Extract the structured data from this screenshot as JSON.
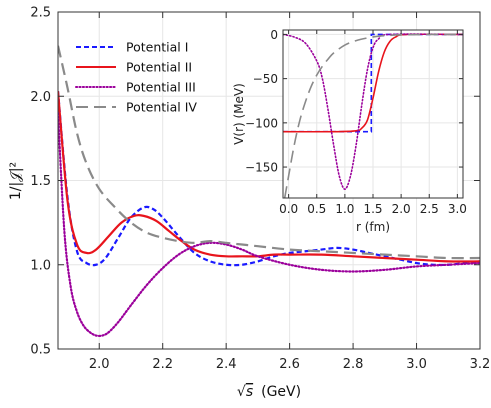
{
  "chart_data": [
    {
      "type": "line",
      "xlabel_radical": "√",
      "xlabel_var": "s",
      "xlabel_unit": "(GeV)",
      "ylabel": "1/|𝒥|²",
      "xlim": [
        1.87,
        3.2
      ],
      "ylim": [
        0.5,
        2.5
      ],
      "xticks": [
        2.0,
        2.2,
        2.4,
        2.6,
        2.8,
        3.0,
        3.2
      ],
      "xtick_labels": [
        "2.0",
        "2.2",
        "2.4",
        "2.6",
        "2.8",
        "3.0",
        "3.2"
      ],
      "yticks": [
        0.5,
        1.0,
        1.5,
        2.0,
        2.5
      ],
      "ytick_labels": [
        "0.5",
        "1.0",
        "1.5",
        "2.0",
        "2.5"
      ],
      "grid": true,
      "legend_position": "top-left",
      "series": [
        {
          "name": "Potential I",
          "color": "#1a1aff",
          "dash": "dashed",
          "x": [
            1.87,
            1.9,
            1.93,
            1.96,
            1.99,
            2.02,
            2.06,
            2.1,
            2.14,
            2.17,
            2.2,
            2.25,
            2.3,
            2.35,
            2.4,
            2.45,
            2.5,
            2.55,
            2.6,
            2.65,
            2.7,
            2.75,
            2.8,
            2.85,
            2.9,
            2.95,
            3.0,
            3.05,
            3.1,
            3.15,
            3.2
          ],
          "values": [
            2.03,
            1.4,
            1.08,
            1.01,
            1.0,
            1.04,
            1.16,
            1.28,
            1.34,
            1.33,
            1.28,
            1.17,
            1.07,
            1.02,
            1.0,
            1.0,
            1.02,
            1.05,
            1.07,
            1.08,
            1.09,
            1.1,
            1.09,
            1.07,
            1.05,
            1.03,
            1.01,
            1.0,
            1.0,
            1.01,
            1.02
          ]
        },
        {
          "name": "Potential II",
          "color": "#e8141c",
          "dash": "solid",
          "x": [
            1.87,
            1.9,
            1.93,
            1.96,
            1.99,
            2.03,
            2.07,
            2.11,
            2.14,
            2.18,
            2.22,
            2.26,
            2.3,
            2.35,
            2.4,
            2.45,
            2.5,
            2.55,
            2.6,
            2.7,
            2.8,
            2.9,
            3.0,
            3.1,
            3.2
          ],
          "values": [
            2.03,
            1.38,
            1.12,
            1.07,
            1.09,
            1.17,
            1.25,
            1.29,
            1.29,
            1.26,
            1.2,
            1.14,
            1.09,
            1.06,
            1.05,
            1.05,
            1.05,
            1.06,
            1.06,
            1.06,
            1.05,
            1.04,
            1.03,
            1.02,
            1.02
          ]
        },
        {
          "name": "Potential III",
          "color": "#9b009b",
          "dash": "dotted",
          "x": [
            1.87,
            1.89,
            1.91,
            1.93,
            1.95,
            1.97,
            1.99,
            2.01,
            2.03,
            2.06,
            2.1,
            2.15,
            2.2,
            2.25,
            2.3,
            2.35,
            2.4,
            2.45,
            2.5,
            2.6,
            2.7,
            2.8,
            2.9,
            3.0,
            3.1,
            3.2
          ],
          "values": [
            1.9,
            1.2,
            0.87,
            0.72,
            0.64,
            0.6,
            0.58,
            0.58,
            0.6,
            0.66,
            0.76,
            0.88,
            0.98,
            1.06,
            1.11,
            1.13,
            1.12,
            1.09,
            1.05,
            1.0,
            0.97,
            0.96,
            0.97,
            0.99,
            1.0,
            1.01
          ]
        },
        {
          "name": "Potential IV",
          "color": "#8a8a8a",
          "dash": "longdash",
          "x": [
            1.87,
            1.9,
            1.93,
            1.96,
            2.0,
            2.05,
            2.1,
            2.15,
            2.2,
            2.25,
            2.3,
            2.35,
            2.4,
            2.45,
            2.5,
            2.6,
            2.7,
            2.8,
            2.9,
            3.0,
            3.1,
            3.2
          ],
          "values": [
            2.3,
            2.05,
            1.78,
            1.6,
            1.45,
            1.34,
            1.25,
            1.19,
            1.16,
            1.14,
            1.13,
            1.14,
            1.13,
            1.12,
            1.11,
            1.09,
            1.08,
            1.07,
            1.06,
            1.05,
            1.04,
            1.04
          ]
        }
      ]
    },
    {
      "type": "line",
      "role": "inset",
      "xlabel": "r (fm)",
      "ylabel": "V(r) (MeV)",
      "xlim": [
        -0.1,
        3.1
      ],
      "ylim": [
        -185,
        5
      ],
      "xticks": [
        0.0,
        0.5,
        1.0,
        1.5,
        2.0,
        2.5,
        3.0
      ],
      "xtick_labels": [
        "0.0",
        "0.5",
        "1.0",
        "1.5",
        "2.0",
        "2.5",
        "3.0"
      ],
      "yticks": [
        0,
        -50,
        -100,
        -150
      ],
      "ytick_labels": [
        "0",
        "−50",
        "−100",
        "−150"
      ],
      "grid": true,
      "series": [
        {
          "name": "Potential I",
          "color": "#1a1aff",
          "dash": "dashed",
          "x": [
            -0.1,
            1.47,
            1.47,
            3.1
          ],
          "values": [
            -110,
            -110,
            0,
            0
          ]
        },
        {
          "name": "Potential II",
          "color": "#e8141c",
          "dash": "solid",
          "x": [
            -0.1,
            0.8,
            1.2,
            1.3,
            1.4,
            1.5,
            1.6,
            1.7,
            1.8,
            1.9,
            2.1,
            3.1
          ],
          "values": [
            -110,
            -110,
            -109,
            -106,
            -97,
            -72,
            -42,
            -20,
            -8,
            -3,
            0,
            0
          ]
        },
        {
          "name": "Potential III",
          "color": "#9b009b",
          "dash": "dotted",
          "x": [
            -0.1,
            0.1,
            0.3,
            0.5,
            0.6,
            0.7,
            0.8,
            0.9,
            1.0,
            1.1,
            1.2,
            1.3,
            1.4,
            1.5,
            1.6,
            1.8,
            3.1
          ],
          "values": [
            0,
            -3,
            -10,
            -30,
            -50,
            -85,
            -125,
            -160,
            -175,
            -160,
            -125,
            -80,
            -40,
            -15,
            -5,
            0,
            0
          ]
        },
        {
          "name": "Potential IV",
          "color": "#8a8a8a",
          "dash": "longdash",
          "x": [
            -0.07,
            0.0,
            0.1,
            0.2,
            0.3,
            0.4,
            0.5,
            0.6,
            0.7,
            0.8,
            1.0,
            1.2,
            1.4,
            1.6,
            1.8,
            2.0,
            2.5,
            3.1
          ],
          "values": [
            -185,
            -160,
            -125,
            -97,
            -76,
            -59,
            -46,
            -36,
            -28,
            -21,
            -12,
            -7,
            -4,
            -2,
            -1,
            -0.5,
            0,
            0
          ]
        }
      ]
    }
  ]
}
